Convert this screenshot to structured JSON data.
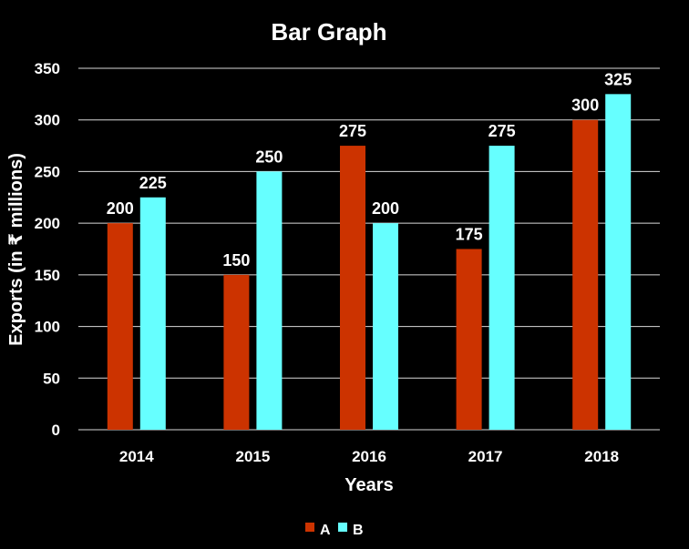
{
  "chart_data": {
    "type": "bar",
    "title": "Bar Graph",
    "xlabel": "Years",
    "ylabel": "Exports (in ₹ millions)",
    "categories": [
      "2014",
      "2015",
      "2016",
      "2017",
      "2018"
    ],
    "series": [
      {
        "name": "A",
        "values": [
          200,
          150,
          275,
          175,
          300
        ],
        "color": "#cc3300"
      },
      {
        "name": "B",
        "values": [
          225,
          250,
          200,
          275,
          325
        ],
        "color": "#66ffff"
      }
    ],
    "ylim": [
      0,
      350
    ],
    "yticks": [
      "0",
      "50",
      "100",
      "150",
      "200",
      "250",
      "300",
      "350"
    ],
    "grid": true,
    "legend": "bottom",
    "data_labels": true
  }
}
